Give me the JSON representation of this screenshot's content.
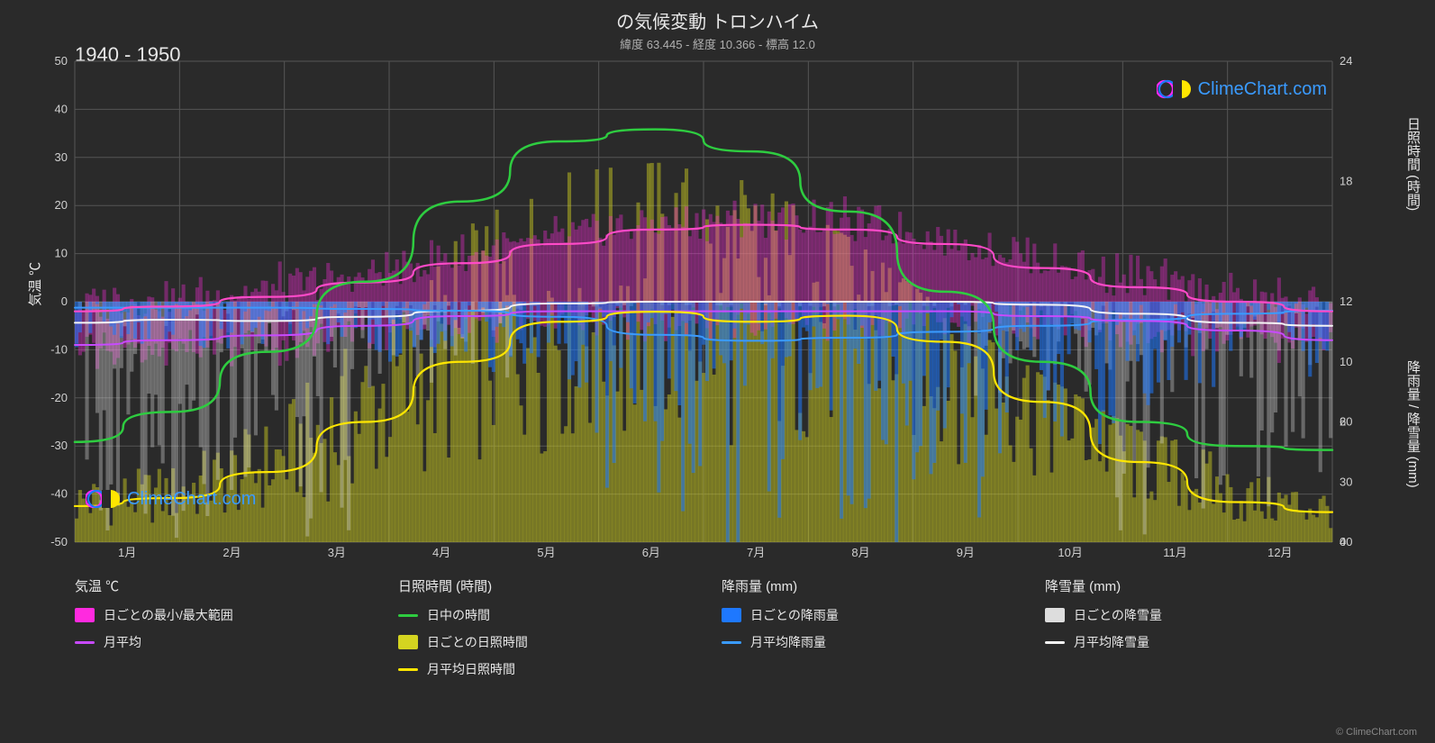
{
  "title": "の気候変動 トロンハイム",
  "subtitle": "緯度 63.445 - 経度 10.366 - 標高 12.0",
  "period_label": "1940 - 1950",
  "watermark_text": "ClimeChart.com",
  "watermark_color": "#3a9bff",
  "copyright": "© ClimeChart.com",
  "chart": {
    "background": "#2a2a2a",
    "grid_color": "#555555",
    "months": [
      "1月",
      "2月",
      "3月",
      "4月",
      "5月",
      "6月",
      "7月",
      "8月",
      "9月",
      "10月",
      "11月",
      "12月"
    ],
    "y_left": {
      "label": "気温 ℃",
      "min": -50,
      "max": 50,
      "step": 10,
      "fontsize": 15
    },
    "y_right_top": {
      "label": "日照時間 (時間)",
      "min": 0,
      "max": 24,
      "step": 6,
      "fontsize": 15
    },
    "y_right_bottom": {
      "label": "降雨量 / 降雪量 (mm)",
      "min": 0,
      "max": 40,
      "step": 10,
      "fontsize": 15
    },
    "tick_fontsize": 13,
    "series": {
      "day_length": {
        "type": "line",
        "color": "#2ecc40",
        "width": 2.5,
        "values": [
          5.0,
          6.5,
          9.5,
          13.0,
          17.0,
          20.0,
          20.6,
          19.5,
          16.5,
          12.5,
          9.0,
          6.0,
          4.8,
          4.6
        ]
      },
      "sunshine_avg": {
        "type": "line",
        "color": "#ffe600",
        "width": 2.2,
        "values": [
          1.8,
          2.2,
          3.5,
          6.0,
          9.0,
          11.0,
          11.5,
          11.0,
          11.3,
          10.0,
          7.0,
          4.0,
          2.0,
          1.5
        ]
      },
      "temp_avg_high": {
        "type": "line",
        "color": "#ff4ac8",
        "width": 2.2,
        "values": [
          -2,
          -1,
          1,
          4,
          8,
          12,
          15,
          16,
          15,
          12,
          7,
          3,
          0,
          -2
        ]
      },
      "temp_avg_low": {
        "type": "line",
        "color": "#c84aff",
        "width": 2.0,
        "values": [
          -9,
          -8,
          -7,
          -5,
          -3,
          -2,
          -2,
          -2,
          -2,
          -2,
          -3,
          -4,
          -6,
          -8
        ]
      },
      "snow_avg": {
        "type": "line",
        "color": "#f5f5f5",
        "width": 2.0,
        "values_mm": [
          3.5,
          3.0,
          3.2,
          2.5,
          1.5,
          0.3,
          0,
          0,
          0,
          0,
          0.5,
          2.0,
          3.5,
          4.0
        ]
      },
      "rain_avg": {
        "type": "line",
        "color": "#3a9bff",
        "width": 2.0,
        "values_mm": [
          1.0,
          1.0,
          1.0,
          1.2,
          1.5,
          2.5,
          5.5,
          6.5,
          6.0,
          5.0,
          4.0,
          3.0,
          2.0,
          1.5
        ]
      }
    },
    "bars": {
      "temp_range": {
        "color": "#ff2adf",
        "opacity": 0.35
      },
      "sunshine_daily": {
        "color": "#d4d420",
        "opacity": 0.45
      },
      "rain_daily": {
        "color": "#1e78ff",
        "opacity": 0.55
      },
      "snow_daily": {
        "color": "#dddddd",
        "opacity": 0.35
      }
    }
  },
  "legend": {
    "groups": [
      {
        "title": "気温 ℃",
        "items": [
          {
            "kind": "swatch",
            "color": "#ff2adf",
            "label": "日ごとの最小/最大範囲"
          },
          {
            "kind": "line",
            "color": "#c84aff",
            "label": "月平均"
          }
        ]
      },
      {
        "title": "日照時間 (時間)",
        "items": [
          {
            "kind": "line",
            "color": "#2ecc40",
            "label": "日中の時間"
          },
          {
            "kind": "swatch",
            "color": "#d4d420",
            "label": "日ごとの日照時間"
          },
          {
            "kind": "line",
            "color": "#ffe600",
            "label": "月平均日照時間"
          }
        ]
      },
      {
        "title": "降雨量 (mm)",
        "items": [
          {
            "kind": "swatch",
            "color": "#1e78ff",
            "label": "日ごとの降雨量"
          },
          {
            "kind": "line",
            "color": "#3a9bff",
            "label": "月平均降雨量"
          }
        ]
      },
      {
        "title": "降雪量 (mm)",
        "items": [
          {
            "kind": "swatch",
            "color": "#dddddd",
            "label": "日ごとの降雪量"
          },
          {
            "kind": "line",
            "color": "#f5f5f5",
            "label": "月平均降雪量"
          }
        ]
      }
    ]
  }
}
